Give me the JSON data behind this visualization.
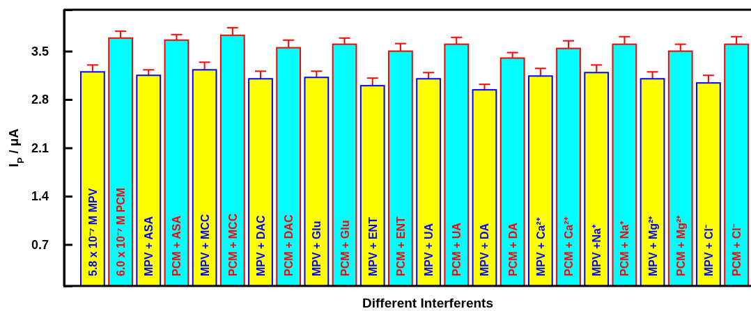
{
  "chart_data": {
    "type": "bar",
    "xlabel": "Different Interferents",
    "ylabel": "I$_{P}$ / μA",
    "categories": [
      "5.8 x 10⁻⁷ M MPV",
      "6.0 x 10⁻⁷ M PCM",
      "MPV + ASA",
      "PCM + ASA",
      "MPV + MCC",
      "PCM + MCC",
      "MPV + DAC",
      "PCM + DAC",
      "MPV + Glu",
      "PCM + Glu",
      "MPV + ENT",
      "PCM + ENT",
      "MPV + UA",
      "PCM + UA",
      "MPV + DA",
      "PCM + DA",
      "MPV + Ca²⁺",
      "PCM + Ca²⁺",
      "MPV +Na⁺",
      "PCM + Na⁺",
      "MPV + Mg²⁺",
      "PCM + Mg²⁺",
      "MPV + Cl⁻",
      "PCM + Cl⁻"
    ],
    "values": [
      3.2,
      3.69,
      3.15,
      3.66,
      3.23,
      3.73,
      3.1,
      3.55,
      3.12,
      3.6,
      3.0,
      3.5,
      3.1,
      3.6,
      2.94,
      3.4,
      3.14,
      3.54,
      3.19,
      3.6,
      3.1,
      3.5,
      3.04,
      3.6
    ],
    "errors": [
      0.1,
      0.1,
      0.08,
      0.08,
      0.11,
      0.11,
      0.11,
      0.11,
      0.09,
      0.09,
      0.11,
      0.11,
      0.09,
      0.1,
      0.08,
      0.08,
      0.11,
      0.11,
      0.11,
      0.11,
      0.1,
      0.1,
      0.11,
      0.11
    ],
    "colors": [
      "#ffff00",
      "#00ffff",
      "#ffff00",
      "#00ffff",
      "#ffff00",
      "#00ffff",
      "#ffff00",
      "#00ffff",
      "#ffff00",
      "#00ffff",
      "#ffff00",
      "#00ffff",
      "#ffff00",
      "#00ffff",
      "#ffff00",
      "#00ffff",
      "#ffff00",
      "#00ffff",
      "#ffff00",
      "#00ffff",
      "#ffff00",
      "#00ffff",
      "#ffff00",
      "#00ffff"
    ],
    "ylim": [
      0.1,
      4.1
    ],
    "yticks": [
      0.7,
      1.4,
      2.1,
      2.8,
      3.5
    ],
    "grid": false
  }
}
